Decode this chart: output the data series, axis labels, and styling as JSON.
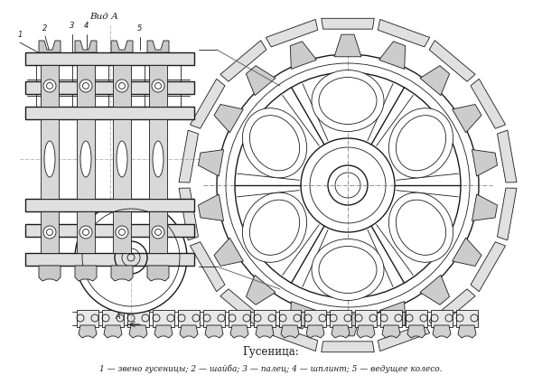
{
  "title": "Гусеница:",
  "caption": "1 — звено гусеницы; 2 — шайба; 3 — палец; 4 — шплинт; 5 — ведущее колесо.",
  "view_label": "Вид А",
  "bg_color": "#ffffff",
  "fig_width": 6.0,
  "fig_height": 4.25,
  "title_fontsize": 8.5,
  "caption_fontsize": 6.5,
  "view_fontsize": 7.5,
  "text_color": "#1a1a1a",
  "drawing_color": "#1a1a1a"
}
